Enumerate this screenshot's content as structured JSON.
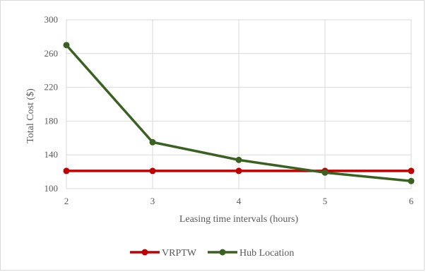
{
  "chart_data": {
    "type": "line",
    "title": "",
    "xlabel": "Leasing time intervals (hours)",
    "ylabel": "Total Cost ($)",
    "x": [
      2,
      3,
      4,
      5,
      6
    ],
    "x_ticks": [
      "2",
      "3",
      "4",
      "5",
      "6"
    ],
    "y_ticks": [
      "100",
      "140",
      "180",
      "220",
      "260",
      "300"
    ],
    "ylim": [
      100,
      300
    ],
    "grid": true,
    "legend_position": "bottom",
    "series": [
      {
        "name": "VRPTW",
        "color": "#C00000",
        "values": [
          121,
          121,
          121,
          121,
          121
        ]
      },
      {
        "name": "Hub Location",
        "color": "#3B6122",
        "values": [
          270,
          155,
          134,
          119,
          109
        ]
      }
    ]
  }
}
